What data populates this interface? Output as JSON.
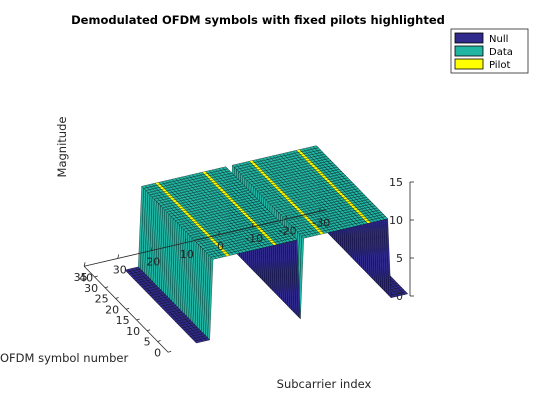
{
  "chart_data": {
    "type": "surface3d",
    "title": "Demodulated OFDM symbols with fixed pilots highlighted",
    "xlabel": "Subcarrier index",
    "ylabel": "OFDM symbol number",
    "zlabel": "Magnitude",
    "xlim": [
      -32,
      32
    ],
    "ylim": [
      0,
      40
    ],
    "zlim": [
      0,
      15
    ],
    "xticks": [
      -30,
      -20,
      -10,
      0,
      10,
      20,
      30,
      40
    ],
    "yticks": [
      0,
      5,
      10,
      15,
      20,
      25,
      30,
      35
    ],
    "zticks": [
      0,
      5,
      10,
      15
    ],
    "symbols": [
      1,
      35
    ],
    "data_magnitude": 10.5,
    "null_magnitude": 0,
    "null_subcarriers": [
      -32,
      -31,
      -30,
      -29,
      -28,
      -27,
      0,
      27,
      28,
      29,
      30,
      31
    ],
    "pilot_subcarriers": [
      -21,
      -7,
      7,
      21
    ],
    "legend": {
      "position": "top-right",
      "entries": [
        {
          "label": "Null",
          "color": "#2f2a8c"
        },
        {
          "label": "Data",
          "color": "#21b5a3"
        },
        {
          "label": "Pilot",
          "color": "#ffff00"
        }
      ]
    },
    "grid": false
  }
}
